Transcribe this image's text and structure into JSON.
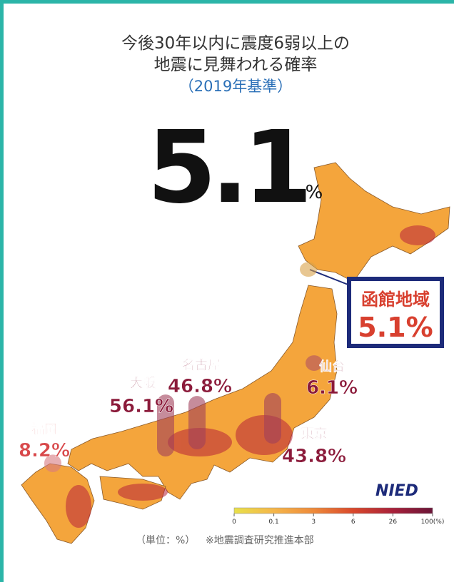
{
  "header": {
    "title_lines": [
      "今後30年以内に震度6弱以上の",
      "地震に見舞われる確率"
    ],
    "subtitle": "（2019年基準）"
  },
  "headline": {
    "value": 5.1,
    "unit": "%"
  },
  "callout": {
    "region": "函館地域",
    "label": "5.1%",
    "value": 5.1
  },
  "cities": [
    {
      "name": "福岡",
      "label": "8.2%",
      "value": 8.2
    },
    {
      "name": "大阪",
      "label": "56.1%",
      "value": 56.1
    },
    {
      "name": "名古屋",
      "label": "46.8%",
      "value": 46.8
    },
    {
      "name": "仙台",
      "label": "6.1%",
      "value": 6.1
    },
    {
      "name": "東京",
      "label": "43.8%",
      "value": 43.8
    }
  ],
  "legend": {
    "ticks": [
      0,
      0.1,
      3,
      6,
      26,
      {
        "value": 100,
        "label": "100(%)"
      }
    ],
    "colors": [
      "#e8e04a",
      "#f5b64a",
      "#ee8a3a",
      "#d9482b",
      "#a8203a",
      "#6a1538"
    ]
  },
  "footer": {
    "unit_note": "（単位：%）",
    "source": "※地震調査研究推進本部"
  },
  "logo": "NIED"
}
